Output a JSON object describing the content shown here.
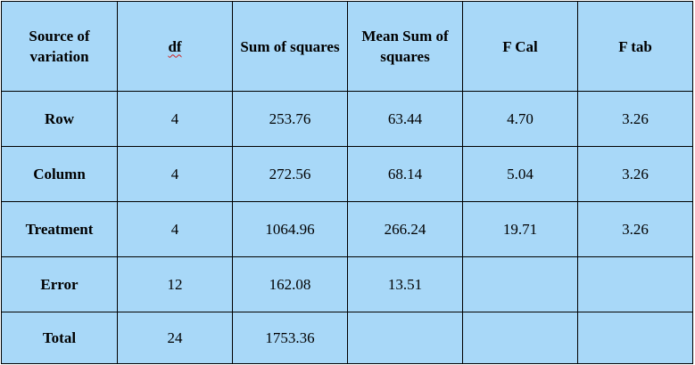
{
  "header": {
    "source": "Source of variation",
    "df": "df",
    "ss": "Sum of squares",
    "ms": "Mean Sum of squares",
    "fcal": "F Cal",
    "ftab": "F tab"
  },
  "rows": [
    {
      "source": "Row",
      "df": "4",
      "ss": "253.76",
      "ms": "63.44",
      "fcal": "4.70",
      "ftab": "3.26"
    },
    {
      "source": "Column",
      "df": "4",
      "ss": "272.56",
      "ms": "68.14",
      "fcal": "5.04",
      "ftab": "3.26"
    },
    {
      "source": "Treatment",
      "df": "4",
      "ss": "1064.96",
      "ms": "266.24",
      "fcal": "19.71",
      "ftab": "3.26"
    },
    {
      "source": "Error",
      "df": "12",
      "ss": "162.08",
      "ms": "13.51",
      "fcal": "",
      "ftab": ""
    },
    {
      "source": "Total",
      "df": "24",
      "ss": "1753.36",
      "ms": "",
      "fcal": "",
      "ftab": ""
    }
  ],
  "colors": {
    "cell_background": "#a8d8f8",
    "border": "#000000",
    "spellcheck_underline": "#d02020"
  }
}
